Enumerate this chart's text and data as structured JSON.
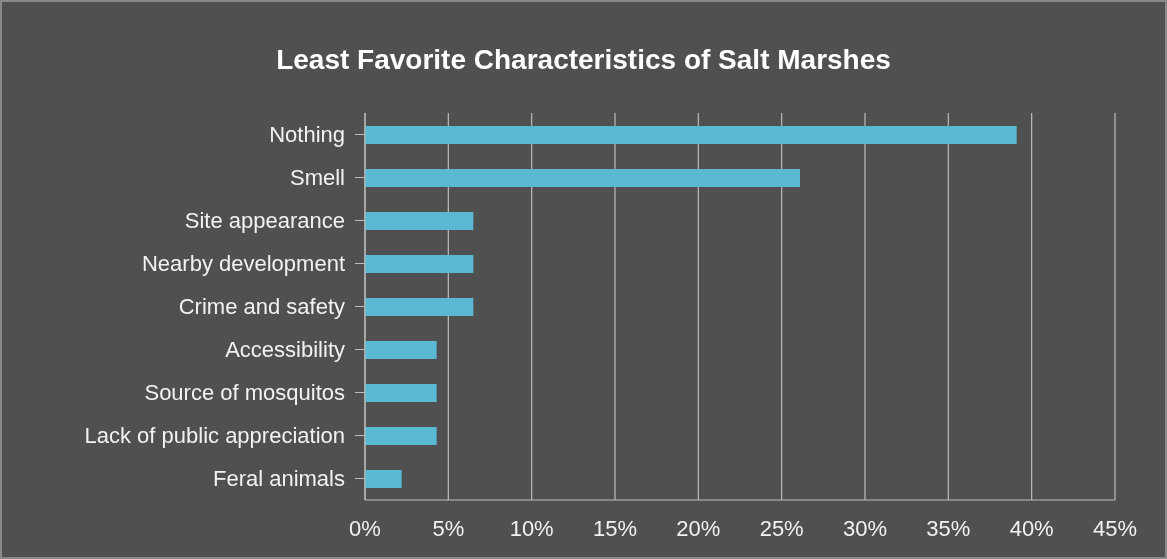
{
  "chart_data": {
    "type": "bar",
    "orientation": "horizontal",
    "title": "Least Favorite Characteristics of Salt Marshes",
    "categories": [
      "Nothing",
      "Smell",
      "Site appearance",
      "Nearby development",
      "Crime and safety",
      "Accessibility",
      "Source of mosquitos",
      "Lack of public appreciation",
      "Feral animals"
    ],
    "values": [
      39.1,
      26.1,
      6.5,
      6.5,
      6.5,
      4.3,
      4.3,
      4.3,
      2.2
    ],
    "color": "#5bb8d3",
    "xlim": [
      0,
      45
    ],
    "xticks": [
      {
        "value": 0,
        "label": "0%"
      },
      {
        "value": 5,
        "label": "5%"
      },
      {
        "value": 10,
        "label": "10%"
      },
      {
        "value": 15,
        "label": "15%"
      },
      {
        "value": 20,
        "label": "20%"
      },
      {
        "value": 25,
        "label": "25%"
      },
      {
        "value": 30,
        "label": "30%"
      },
      {
        "value": 35,
        "label": "35%"
      },
      {
        "value": 40,
        "label": "40%"
      },
      {
        "value": 45,
        "label": "45%"
      }
    ],
    "grid": "x",
    "legend": false
  }
}
